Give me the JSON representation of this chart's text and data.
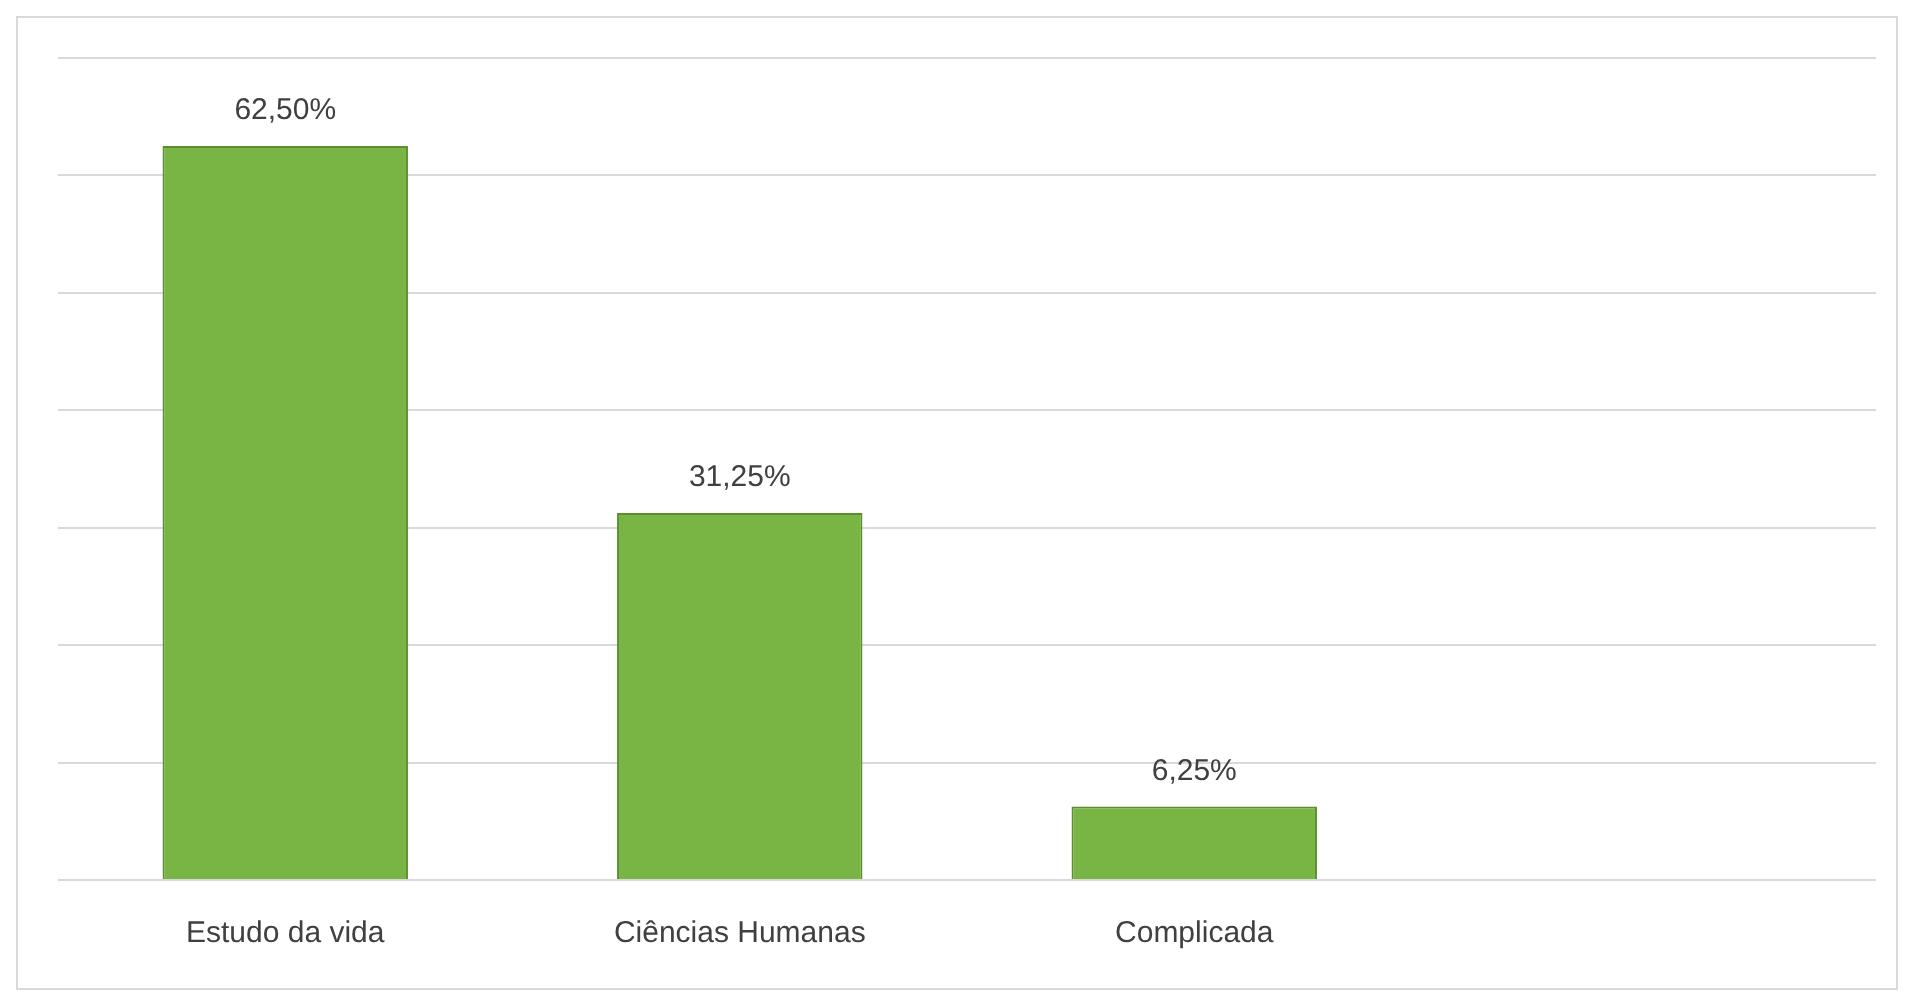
{
  "chart_data": {
    "type": "bar",
    "categories": [
      "Estudo da vida",
      "Ciências Humanas",
      "Complicada",
      null
    ],
    "values": [
      62.5,
      31.25,
      6.25,
      null
    ],
    "color": "#78b545",
    "value_labels": [
      "62,50%",
      "31,25%",
      "6,25%",
      null
    ],
    "ylim": [
      0,
      70
    ],
    "yticks": [
      0,
      10,
      20,
      30,
      40,
      50,
      60,
      70
    ],
    "tick_labels": "x",
    "grid": "y",
    "legend": false
  }
}
